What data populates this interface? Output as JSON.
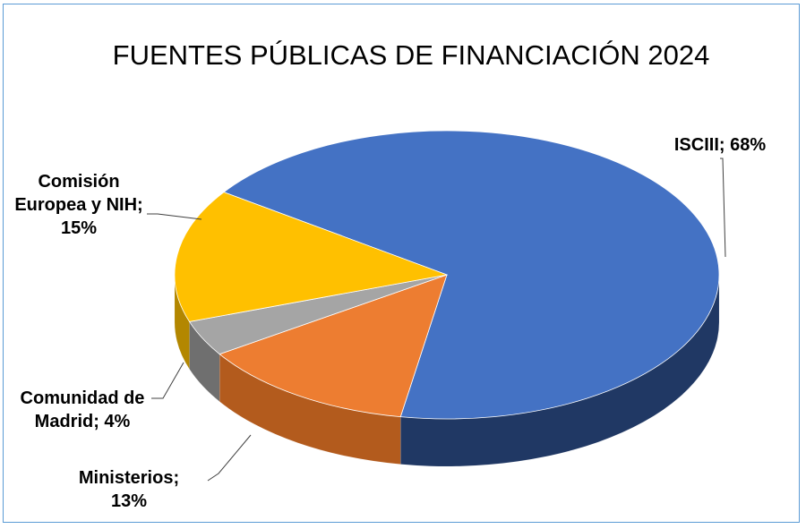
{
  "chart_data": {
    "type": "pie",
    "title": "FUENTES PÚBLICAS DE FINANCIACIÓN 2024",
    "slices": [
      {
        "name": "ISCIII",
        "value": 68,
        "color": "#4472c4",
        "side_color": "#203864",
        "label_lines": [
          "ISCIII; 68%"
        ]
      },
      {
        "name": "Ministerios",
        "value": 13,
        "color": "#ed7d31",
        "side_color": "#b35b1d",
        "label_lines": [
          "Ministerios;",
          "13%"
        ]
      },
      {
        "name": "Comunidad de Madrid",
        "value": 4,
        "color": "#a5a5a5",
        "side_color": "#6f6f6f",
        "label_lines": [
          "Comunidad de",
          "Madrid; 4%"
        ]
      },
      {
        "name": "Comisión Europea y NIH",
        "value": 15,
        "color": "#ffc000",
        "side_color": "#b38700",
        "label_lines": [
          "Comisión",
          "Europea y NIH;",
          "15%"
        ]
      }
    ],
    "units": "%",
    "border_color": "#5b9bd5"
  }
}
